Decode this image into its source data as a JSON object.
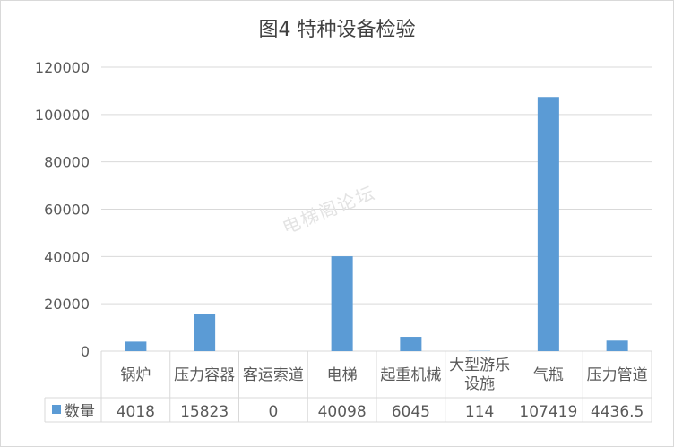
{
  "chart_data": {
    "type": "bar",
    "title": "图4  特种设备检验",
    "categories": [
      "锅炉",
      "压力容器",
      "客运索道",
      "电梯",
      "起重机械",
      "大型游乐设施",
      "气瓶",
      "压力管道"
    ],
    "category_lines": [
      [
        "锅炉"
      ],
      [
        "压力容器"
      ],
      [
        "客运索道"
      ],
      [
        "电梯"
      ],
      [
        "起重机械"
      ],
      [
        "大型游乐",
        "设施"
      ],
      [
        "气瓶"
      ],
      [
        "压力管道"
      ]
    ],
    "series": [
      {
        "name": "数量",
        "values": [
          4018,
          15823,
          0,
          40098,
          6045,
          114,
          107419,
          4436.5
        ],
        "color": "#5b9bd5"
      }
    ],
    "table_values": [
      "4018",
      "15823",
      "0",
      "40098",
      "6045",
      "114",
      "107419",
      "4436.5"
    ],
    "ylim": [
      0,
      120000
    ],
    "yticks": [
      "0",
      "20000",
      "40000",
      "60000",
      "80000",
      "100000",
      "120000"
    ],
    "grid": true,
    "data_table": true,
    "xlabel": "",
    "ylabel": ""
  },
  "watermark": "电梯阁论坛",
  "colors": {
    "bar": "#5b9bd5",
    "grid": "#d9d9d9",
    "text": "#595959",
    "title": "#404040"
  }
}
